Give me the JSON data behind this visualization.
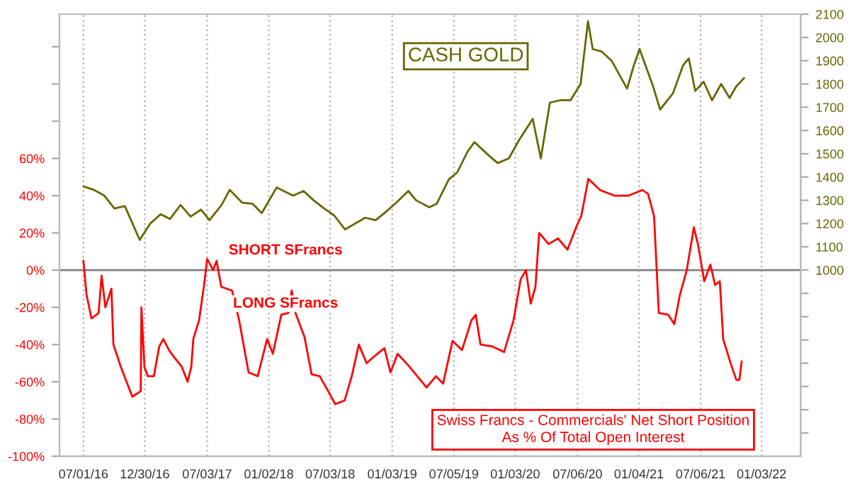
{
  "chart_data": {
    "type": "line",
    "annotations": [
      "CASH GOLD",
      "SHORT SFrancs",
      "LONG SFrancs",
      "Swiss Francs - Commercials' Net Short Position\nAs % Of Total Open Interest"
    ],
    "xlim": [
      "2016-04-21",
      "2022-04-29"
    ],
    "xticks": [
      {
        "value": "2016-07-01",
        "label": "07/01/16"
      },
      {
        "value": "2016-12-30",
        "label": "12/30/16"
      },
      {
        "value": "2017-07-03",
        "label": "07/03/17"
      },
      {
        "value": "2018-01-02",
        "label": "01/02/18"
      },
      {
        "value": "2018-07-03",
        "label": "07/03/18"
      },
      {
        "value": "2019-01-03",
        "label": "01/03/19"
      },
      {
        "value": "2019-07-05",
        "label": "07/05/19"
      },
      {
        "value": "2020-01-03",
        "label": "01/03/20"
      },
      {
        "value": "2020-07-06",
        "label": "07/06/20"
      },
      {
        "value": "2021-01-04",
        "label": "01/04/21"
      },
      {
        "value": "2021-07-06",
        "label": "07/06/21"
      },
      {
        "value": "2022-01-03",
        "label": "01/03/22"
      }
    ],
    "ylim": [
      -100,
      137.5
    ],
    "yticks": [
      {
        "value": -100,
        "label": "-100%"
      },
      {
        "value": -80,
        "label": "-80%"
      },
      {
        "value": -60,
        "label": "-60%"
      },
      {
        "value": -40,
        "label": "-40%"
      },
      {
        "value": -20,
        "label": "-20%"
      },
      {
        "value": 0,
        "label": "0%"
      },
      {
        "value": 20,
        "label": "20%"
      },
      {
        "value": 40,
        "label": "40%"
      },
      {
        "value": 60,
        "label": "60%"
      },
      {
        "value": 80,
        "label": null
      },
      {
        "value": 100,
        "label": null
      },
      {
        "value": 120,
        "label": null
      }
    ],
    "y2lim": [
      200,
      2100
    ],
    "y2ticks": [
      {
        "value": 300,
        "label": null
      },
      {
        "value": 400,
        "label": null
      },
      {
        "value": 500,
        "label": null
      },
      {
        "value": 600,
        "label": null
      },
      {
        "value": 700,
        "label": null
      },
      {
        "value": 800,
        "label": null
      },
      {
        "value": 900,
        "label": null
      },
      1000,
      1100,
      1200,
      1300,
      1400,
      1500,
      1600,
      1700,
      1800,
      1900,
      2000,
      2100
    ],
    "grid": "x",
    "legend": false,
    "marker": "none",
    "line_style": "solid",
    "ref_lines": [
      {
        "axis": "y",
        "value": 0,
        "color": "#808080"
      }
    ],
    "series": [
      {
        "color": "#666600",
        "axis": "y2",
        "x": [
          "2016-07-01",
          "2016-08-01",
          "2016-09-01",
          "2016-10-01",
          "2016-11-01",
          "2016-12-15",
          "2017-01-15",
          "2017-02-15",
          "2017-03-15",
          "2017-04-15",
          "2017-05-15",
          "2017-06-15",
          "2017-07-10",
          "2017-08-15",
          "2017-09-08",
          "2017-10-15",
          "2017-11-15",
          "2017-12-12",
          "2018-01-25",
          "2018-02-15",
          "2018-03-15",
          "2018-04-15",
          "2018-05-15",
          "2018-06-15",
          "2018-07-15",
          "2018-08-16",
          "2018-09-15",
          "2018-10-15",
          "2018-11-15",
          "2018-12-15",
          "2019-01-15",
          "2019-02-20",
          "2019-03-15",
          "2019-04-23",
          "2019-05-15",
          "2019-06-20",
          "2019-07-15",
          "2019-08-15",
          "2019-09-04",
          "2019-10-15",
          "2019-11-12",
          "2019-12-15",
          "2020-01-15",
          "2020-02-24",
          "2020-03-19",
          "2020-04-15",
          "2020-05-15",
          "2020-06-15",
          "2020-07-15",
          "2020-08-06",
          "2020-08-20",
          "2020-09-15",
          "2020-10-15",
          "2020-11-30",
          "2020-12-20",
          "2021-01-06",
          "2021-02-15",
          "2021-03-08",
          "2021-04-15",
          "2021-05-15",
          "2021-06-01",
          "2021-06-20",
          "2021-07-15",
          "2021-08-09",
          "2021-09-05",
          "2021-09-30",
          "2021-10-20",
          "2021-11-12"
        ],
        "values": [
          1360,
          1345,
          1320,
          1265,
          1275,
          1130,
          1200,
          1240,
          1220,
          1280,
          1230,
          1260,
          1215,
          1280,
          1345,
          1290,
          1285,
          1245,
          1355,
          1340,
          1320,
          1340,
          1300,
          1265,
          1235,
          1175,
          1200,
          1225,
          1215,
          1250,
          1290,
          1340,
          1300,
          1270,
          1285,
          1390,
          1420,
          1510,
          1550,
          1495,
          1460,
          1480,
          1560,
          1650,
          1480,
          1720,
          1730,
          1730,
          1800,
          2070,
          1950,
          1940,
          1900,
          1780,
          1880,
          1950,
          1790,
          1690,
          1760,
          1880,
          1910,
          1770,
          1810,
          1730,
          1800,
          1740,
          1790,
          1825
        ]
      },
      {
        "color": "#ff0000",
        "x": [
          "2016-07-01",
          "2016-07-10",
          "2016-07-25",
          "2016-08-15",
          "2016-08-24",
          "2016-09-04",
          "2016-09-22",
          "2016-09-28",
          "2016-10-20",
          "2016-11-06",
          "2016-11-23",
          "2016-12-18",
          "2016-12-20",
          "2016-12-29",
          "2017-01-08",
          "2017-01-26",
          "2017-02-11",
          "2017-02-23",
          "2017-03-12",
          "2017-03-28",
          "2017-04-19",
          "2017-05-06",
          "2017-05-17",
          "2017-05-23",
          "2017-06-09",
          "2017-06-24",
          "2017-07-03",
          "2017-07-21",
          "2017-07-31",
          "2017-08-14",
          "2017-09-15",
          "2017-10-06",
          "2017-11-03",
          "2017-11-30",
          "2017-12-28",
          "2018-01-14",
          "2018-02-08",
          "2018-03-01",
          "2018-03-11",
          "2018-03-22",
          "2018-04-18",
          "2018-05-09",
          "2018-06-02",
          "2018-06-27",
          "2018-07-18",
          "2018-08-15",
          "2018-09-05",
          "2018-09-26",
          "2018-10-19",
          "2018-11-13",
          "2018-12-11",
          "2018-12-29",
          "2019-01-19",
          "2019-02-19",
          "2019-04-15",
          "2019-05-13",
          "2019-06-03",
          "2019-07-01",
          "2019-07-29",
          "2019-08-26",
          "2019-09-08",
          "2019-09-22",
          "2019-10-27",
          "2019-12-01",
          "2019-12-29",
          "2020-01-19",
          "2020-02-04",
          "2020-02-18",
          "2020-03-03",
          "2020-03-14",
          "2020-04-11",
          "2020-05-09",
          "2020-06-06",
          "2020-07-04",
          "2020-07-17",
          "2020-08-07",
          "2020-09-11",
          "2020-10-23",
          "2020-12-04",
          "2021-01-14",
          "2021-01-31",
          "2021-02-18",
          "2021-03-04",
          "2021-04-01",
          "2021-04-19",
          "2021-05-06",
          "2021-05-26",
          "2021-06-16",
          "2021-06-28",
          "2021-07-17",
          "2021-08-04",
          "2021-08-18",
          "2021-09-01",
          "2021-09-11",
          "2021-10-03",
          "2021-10-20",
          "2021-10-29",
          "2021-11-05"
        ],
        "values": [
          5,
          -13,
          -26,
          -23,
          -3,
          -20,
          -10,
          -40,
          -52,
          -60,
          -68,
          -65,
          -20,
          -52,
          -57,
          -57,
          -41,
          -37,
          -43,
          -47,
          -52,
          -60,
          -52,
          -37,
          -27,
          -8,
          6,
          0,
          5,
          -9,
          -11,
          -27,
          -55,
          -57,
          -37,
          -45,
          -24,
          -23,
          -11,
          -23,
          -36,
          -56,
          -57,
          -65,
          -72,
          -70,
          -57,
          -40,
          -50,
          -46,
          -42,
          -55,
          -45,
          -51,
          -63,
          -57,
          -61,
          -38,
          -43,
          -27,
          -24,
          -40,
          -41,
          -44,
          -27,
          -5,
          0,
          -18,
          -9,
          20,
          14,
          17,
          11,
          24,
          29,
          49,
          43,
          40,
          40,
          43,
          41,
          29,
          -23,
          -24,
          -29,
          -13,
          0,
          23,
          14,
          -6,
          3,
          -8,
          -6,
          -37,
          -50,
          -59,
          -59,
          -49
        ]
      }
    ]
  }
}
